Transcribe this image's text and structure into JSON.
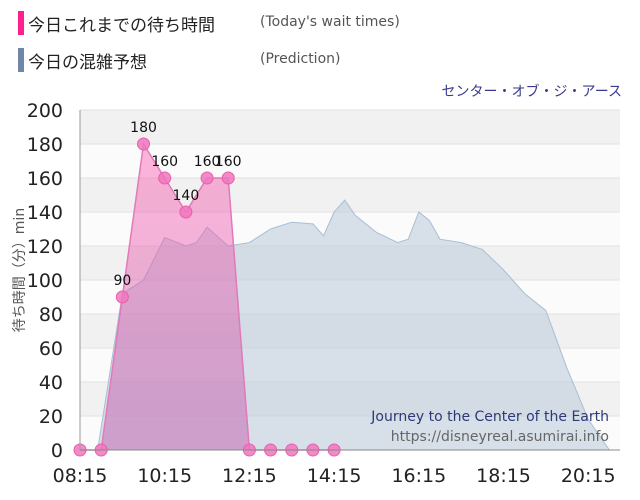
{
  "legend": {
    "today": {
      "label": "今日これまでの待ち時間",
      "sub": "(Today's wait times)",
      "color": "#ff1f8e"
    },
    "prediction": {
      "label": "今日の混雑予想",
      "sub": "(Prediction)",
      "color": "#6f86a8"
    }
  },
  "attraction_jp": "センター・オブ・ジ・アース",
  "watermark": {
    "title": "Journey to the Center of the Earth",
    "url": "https://disneyreal.asumirai.info"
  },
  "chart_data": {
    "type": "area",
    "ylabel": "待ち時間（分）min",
    "ylim": [
      0,
      200
    ],
    "yticks": [
      0,
      20,
      40,
      60,
      80,
      100,
      120,
      140,
      160,
      180,
      200
    ],
    "xlim": [
      "08:15",
      "21:00"
    ],
    "xticks": [
      "08:15",
      "10:15",
      "12:15",
      "14:15",
      "16:15",
      "18:15",
      "20:15"
    ],
    "series": [
      {
        "name": "今日これまでの待ち時間",
        "color": "#ff1f8e",
        "points": [
          {
            "x": "08:15",
            "y": 0
          },
          {
            "x": "08:45",
            "y": 0
          },
          {
            "x": "09:15",
            "y": 90
          },
          {
            "x": "09:45",
            "y": 180
          },
          {
            "x": "10:15",
            "y": 160
          },
          {
            "x": "10:45",
            "y": 140
          },
          {
            "x": "11:15",
            "y": 160
          },
          {
            "x": "11:45",
            "y": 160
          },
          {
            "x": "12:15",
            "y": 0
          },
          {
            "x": "12:45",
            "y": 0
          },
          {
            "x": "13:15",
            "y": 0
          },
          {
            "x": "13:45",
            "y": 0
          },
          {
            "x": "14:15",
            "y": 0
          }
        ],
        "labels": [
          {
            "x": "09:15",
            "text": "90"
          },
          {
            "x": "09:45",
            "text": "180"
          },
          {
            "x": "10:15",
            "text": "160"
          },
          {
            "x": "10:45",
            "text": "140"
          },
          {
            "x": "11:15",
            "text": "160"
          },
          {
            "x": "11:45",
            "text": "160"
          }
        ]
      },
      {
        "name": "今日の混雑予想",
        "color": "#b9c9d8",
        "points": [
          {
            "x": "08:15",
            "y": 0
          },
          {
            "x": "08:40",
            "y": 0
          },
          {
            "x": "09:15",
            "y": 92
          },
          {
            "x": "09:45",
            "y": 100
          },
          {
            "x": "10:15",
            "y": 125
          },
          {
            "x": "10:45",
            "y": 120
          },
          {
            "x": "11:00",
            "y": 122
          },
          {
            "x": "11:15",
            "y": 131
          },
          {
            "x": "11:45",
            "y": 120
          },
          {
            "x": "12:15",
            "y": 122
          },
          {
            "x": "12:45",
            "y": 130
          },
          {
            "x": "13:15",
            "y": 134
          },
          {
            "x": "13:45",
            "y": 133
          },
          {
            "x": "14:00",
            "y": 126
          },
          {
            "x": "14:15",
            "y": 140
          },
          {
            "x": "14:30",
            "y": 147
          },
          {
            "x": "14:45",
            "y": 138
          },
          {
            "x": "15:15",
            "y": 128
          },
          {
            "x": "15:45",
            "y": 122
          },
          {
            "x": "16:00",
            "y": 124
          },
          {
            "x": "16:15",
            "y": 140
          },
          {
            "x": "16:30",
            "y": 135
          },
          {
            "x": "16:45",
            "y": 124
          },
          {
            "x": "17:15",
            "y": 122
          },
          {
            "x": "17:45",
            "y": 118
          },
          {
            "x": "18:15",
            "y": 106
          },
          {
            "x": "18:45",
            "y": 92
          },
          {
            "x": "19:15",
            "y": 82
          },
          {
            "x": "19:45",
            "y": 48
          },
          {
            "x": "20:15",
            "y": 18
          },
          {
            "x": "20:45",
            "y": 0
          }
        ]
      }
    ]
  }
}
